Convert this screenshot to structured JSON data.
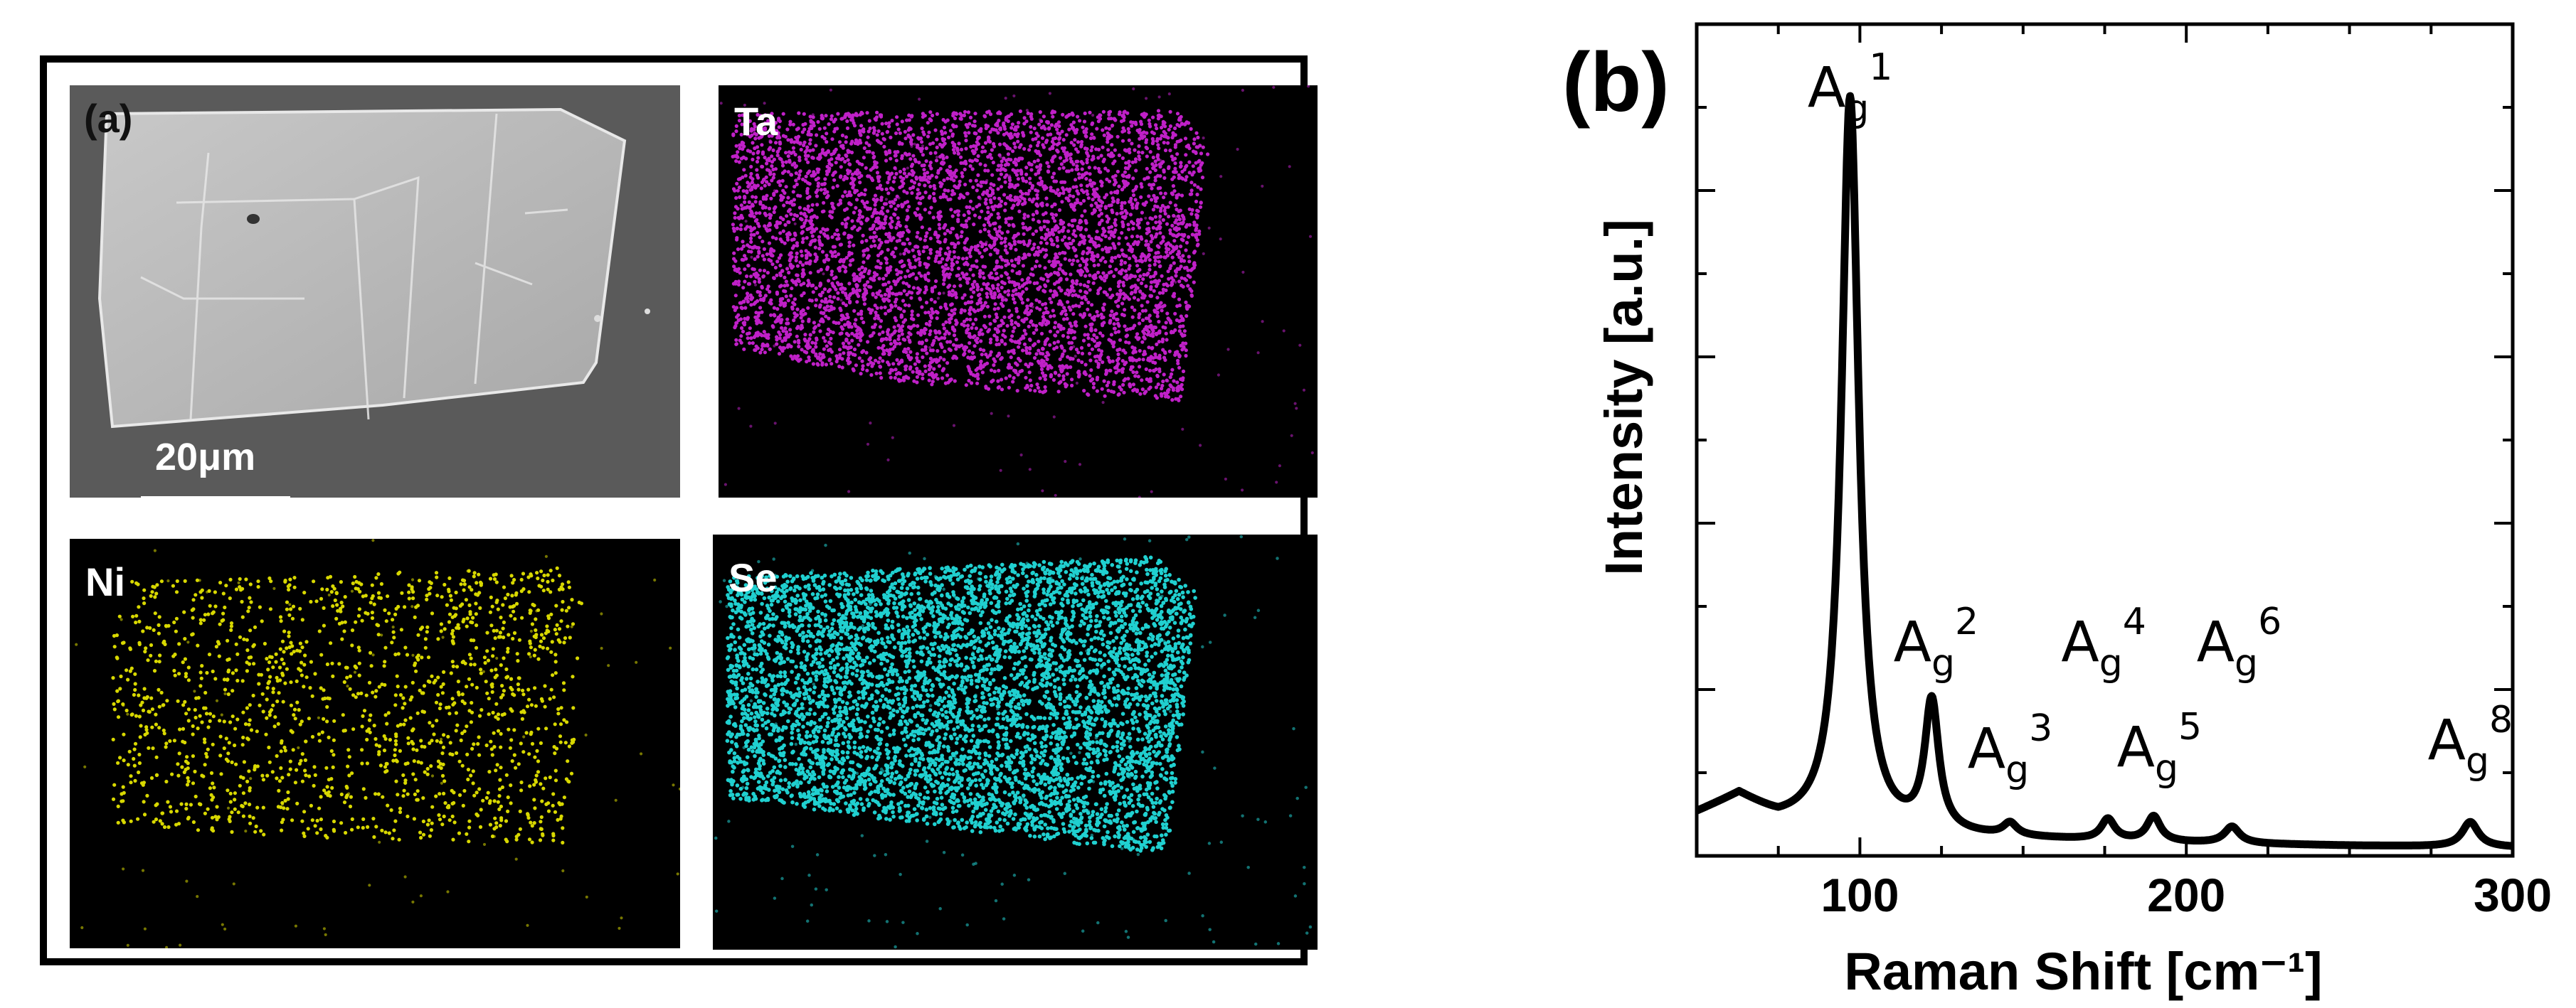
{
  "panel_a": {
    "label": "(a)",
    "scale_bar": "20μm",
    "maps": [
      {
        "element": "Ta",
        "color": "#c020c8"
      },
      {
        "element": "Ni",
        "color": "#d8d800"
      },
      {
        "element": "Se",
        "color": "#20d0d0"
      }
    ]
  },
  "panel_b": {
    "label": "(b)"
  },
  "chart_data": {
    "type": "line",
    "xlabel": "Raman Shift [cm⁻¹]",
    "ylabel": "Intensity [a.u.]",
    "xlim": [
      50,
      300
    ],
    "ylim": [
      0,
      1.0
    ],
    "x_ticks": [
      100,
      200,
      300
    ],
    "y_tick_labels": false,
    "grid": false,
    "series": [
      {
        "line_color": "#000000",
        "peaks": [
          {
            "label": "A",
            "sub": "g",
            "sup": "1",
            "x": 97,
            "height": 0.885
          },
          {
            "label": "A",
            "sub": "g",
            "sup": "2",
            "x": 122,
            "height": 0.155
          },
          {
            "label": "A",
            "sub": "g",
            "sup": "3",
            "x": 146,
            "height": 0.015
          },
          {
            "label": "A",
            "sub": "g",
            "sup": "4",
            "x": 176,
            "height": 0.025
          },
          {
            "label": "A",
            "sub": "g",
            "sup": "5",
            "x": 190,
            "height": 0.03
          },
          {
            "label": "A",
            "sub": "g",
            "sup": "6",
            "x": 214,
            "height": 0.02
          },
          {
            "label": "A",
            "sub": "g",
            "sup": "8",
            "x": 287,
            "height": 0.03
          }
        ],
        "background_points": [
          [
            50,
            0.05
          ],
          [
            63,
            0.07
          ],
          [
            75,
            0.04
          ],
          [
            100,
            0.025
          ],
          [
            150,
            0.02
          ],
          [
            200,
            0.015
          ],
          [
            250,
            0.012
          ],
          [
            300,
            0.01
          ]
        ]
      }
    ]
  }
}
